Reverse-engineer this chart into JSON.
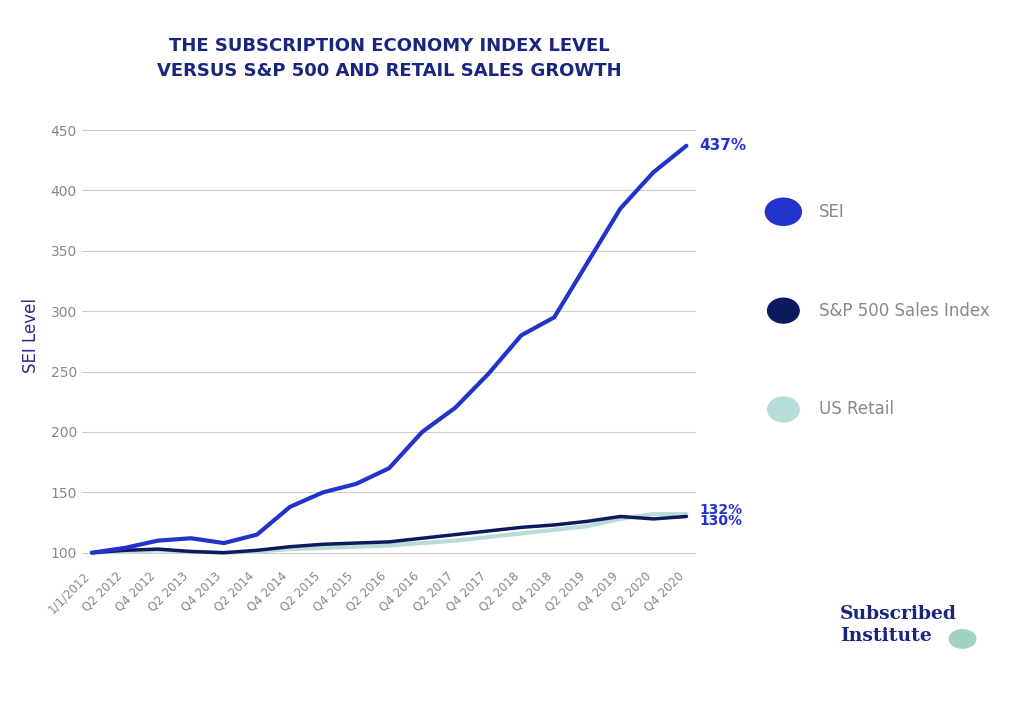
{
  "title_line1": "THE SUBSCRIPTION ECONOMY INDEX LEVEL",
  "title_line2": "VERSUS S&P 500 AND RETAIL SALES GROWTH",
  "ylabel": "SEI Level",
  "ylim": [
    90,
    470
  ],
  "yticks": [
    100,
    150,
    200,
    250,
    300,
    350,
    400,
    450
  ],
  "background_color": "#ffffff",
  "plot_bg_color": "#ffffff",
  "grid_color": "#cccccc",
  "title_color": "#1a2580",
  "ylabel_color": "#2a2a8a",
  "tick_label_color": "#888888",
  "x_labels": [
    "1/1/2012",
    "Q2 2012",
    "Q4 2012",
    "Q2 2013",
    "Q4 2013",
    "Q2 2014",
    "Q4 2014",
    "Q2 2015",
    "Q4 2015",
    "Q2 2016",
    "Q4 2016",
    "Q2 2017",
    "Q4 2017",
    "Q2 2018",
    "Q4 2018",
    "Q2 2019",
    "Q4 2019",
    "Q2 2020",
    "Q4 2020"
  ],
  "sei_values": [
    100,
    104,
    110,
    112,
    108,
    115,
    138,
    150,
    157,
    170,
    200,
    220,
    248,
    280,
    295,
    340,
    385,
    415,
    437
  ],
  "sei_color": "#2233cc",
  "sei_label": "SEI",
  "sei_end_label": "437%",
  "sp500_values": [
    100,
    102,
    103,
    101,
    100,
    102,
    105,
    107,
    108,
    109,
    112,
    115,
    118,
    121,
    123,
    126,
    130,
    128,
    130
  ],
  "sp500_color": "#0d1a5e",
  "sp500_label": "S&P 500 Sales Index",
  "sp500_end_label": "130%",
  "retail_values": [
    100,
    101,
    102,
    101,
    100,
    101,
    103,
    104,
    105,
    106,
    108,
    110,
    113,
    116,
    119,
    122,
    128,
    132,
    132
  ],
  "retail_color": "#b8dcd8",
  "retail_label": "US Retail",
  "retail_end_label": "132%",
  "legend_sei_color": "#2233cc",
  "legend_sp500_color": "#0d1a5e",
  "legend_retail_color": "#b8dcd8",
  "legend_text_color": "#888888",
  "end_label_color": "#2233cc",
  "subscribed_institute_color": "#1a2580",
  "subscribed_institute_dot_color": "#9fd3c7"
}
